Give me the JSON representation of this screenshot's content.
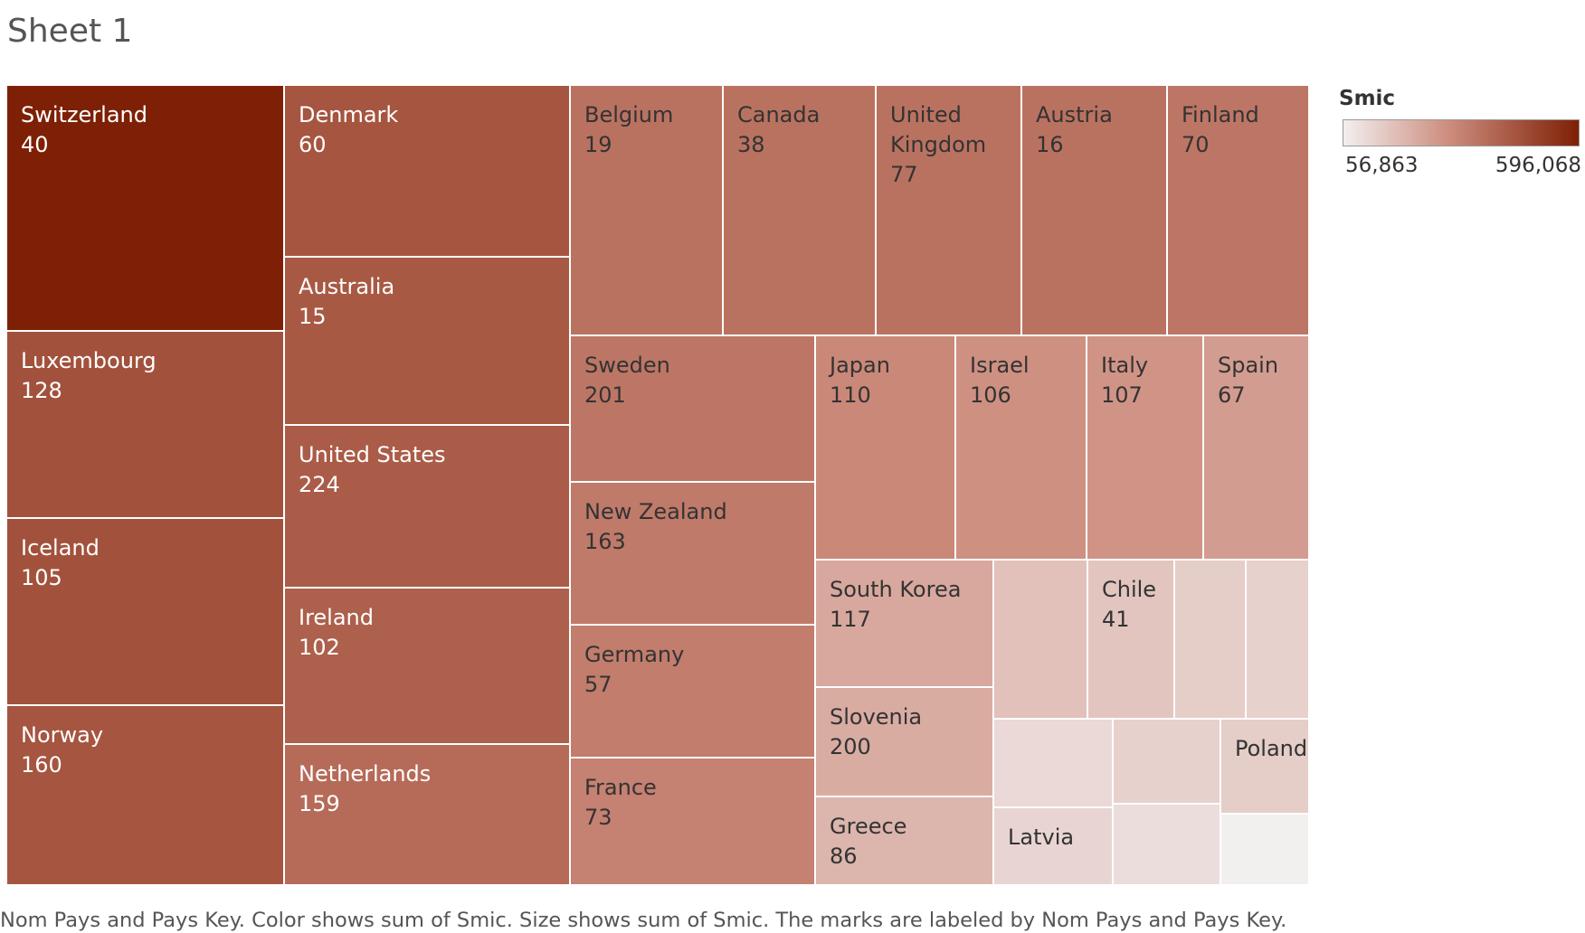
{
  "sheet": {
    "title": "Sheet 1",
    "caption": "Nom Pays and Pays Key.  Color shows sum of Smic.  Size shows sum of Smic.  The marks are labeled by Nom Pays and Pays Key."
  },
  "legend": {
    "title": "Smic",
    "min_label": "56,863",
    "max_label": "596,068",
    "color_low": "#f2efef",
    "color_high": "#7e2005"
  },
  "chart_data": {
    "type": "treemap",
    "color_measure": "Smic",
    "size_measure": "Smic",
    "range": [
      56863,
      596068
    ],
    "tiles": [
      {
        "country": "Switzerland",
        "key": "40",
        "value": 596068
      },
      {
        "country": "Luxembourg",
        "key": "128",
        "value": 460000
      },
      {
        "country": "Iceland",
        "key": "105",
        "value": 460000
      },
      {
        "country": "Norway",
        "key": "160",
        "value": 450000
      },
      {
        "country": "Denmark",
        "key": "60",
        "value": 450000
      },
      {
        "country": "Australia",
        "key": "15",
        "value": 440000
      },
      {
        "country": "United States",
        "key": "224",
        "value": 430000
      },
      {
        "country": "Ireland",
        "key": "102",
        "value": 420000
      },
      {
        "country": "Netherlands",
        "key": "159",
        "value": 390000
      },
      {
        "country": "Belgium",
        "key": "19",
        "value": 370000
      },
      {
        "country": "Canada",
        "key": "38",
        "value": 370000
      },
      {
        "country": "United\nKingdom",
        "key": "77",
        "value": 370000
      },
      {
        "country": "Austria",
        "key": "16",
        "value": 370000
      },
      {
        "country": "Finland",
        "key": "70",
        "value": 360000
      },
      {
        "country": "Sweden",
        "key": "201",
        "value": 360000
      },
      {
        "country": "New Zealand",
        "key": "163",
        "value": 350000
      },
      {
        "country": "Germany",
        "key": "57",
        "value": 340000
      },
      {
        "country": "France",
        "key": "73",
        "value": 330000
      },
      {
        "country": "Japan",
        "key": "110",
        "value": 310000
      },
      {
        "country": "Israel",
        "key": "106",
        "value": 290000
      },
      {
        "country": "Italy",
        "key": "107",
        "value": 280000
      },
      {
        "country": "Spain",
        "key": "67",
        "value": 260000
      },
      {
        "country": "South Korea",
        "key": "117",
        "value": 230000
      },
      {
        "country": "Slovenia",
        "key": "200",
        "value": 220000
      },
      {
        "country": "Greece",
        "key": "86",
        "value": 200000
      },
      {
        "country": "",
        "key": "",
        "value": 170000
      },
      {
        "country": "Chile",
        "key": "41",
        "value": 160000
      },
      {
        "country": "",
        "key": "",
        "value": 140000
      },
      {
        "country": "",
        "key": "",
        "value": 130000
      },
      {
        "country": "",
        "key": "",
        "value": 130000
      },
      {
        "country": "Poland",
        "key": "",
        "value": 140000
      },
      {
        "country": "",
        "key": "",
        "value": 110000
      },
      {
        "country": "Latvia",
        "key": "",
        "value": 120000
      },
      {
        "country": "",
        "key": "",
        "value": 100000
      },
      {
        "country": "",
        "key": "",
        "value": 56863
      }
    ]
  }
}
